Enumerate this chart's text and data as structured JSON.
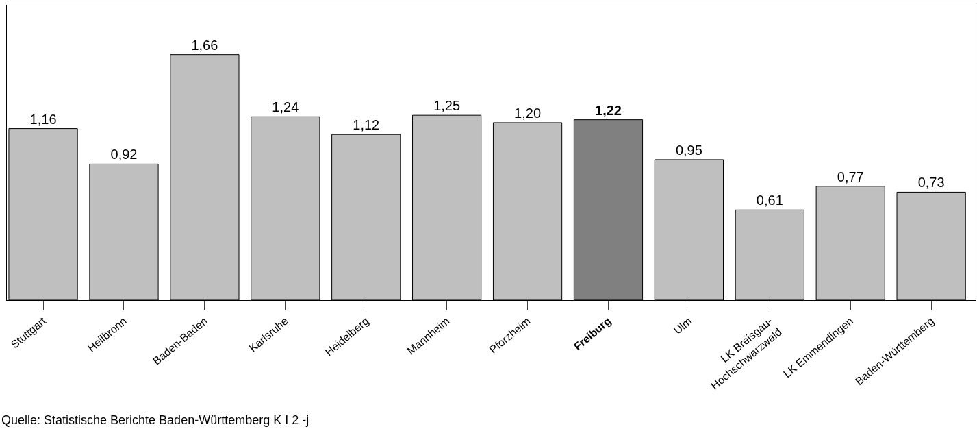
{
  "chart_data": {
    "type": "bar",
    "categories": [
      "Stuttgart",
      "Heilbronn",
      "Baden-Baden",
      "Karlsruhe",
      "Heidelberg",
      "Mannheim",
      "Pforzheim",
      "Freiburg",
      "Ulm",
      "LK Breisgau-\nHochschwarzwald",
      "LK Emmendingen",
      "Baden-Württemberg"
    ],
    "values": [
      1.16,
      0.92,
      1.66,
      1.24,
      1.12,
      1.25,
      1.2,
      1.22,
      0.95,
      0.61,
      0.77,
      0.73
    ],
    "value_labels": [
      "1,16",
      "0,92",
      "1,66",
      "1,24",
      "1,12",
      "1,25",
      "1,20",
      "1,22",
      "0,95",
      "0,61",
      "0,77",
      "0,73"
    ],
    "colors": [
      "#bfbfbf",
      "#bfbfbf",
      "#bfbfbf",
      "#bfbfbf",
      "#bfbfbf",
      "#bfbfbf",
      "#bfbfbf",
      "#808080",
      "#bfbfbf",
      "#bfbfbf",
      "#bfbfbf",
      "#bfbfbf"
    ],
    "annotations": [
      "Quelle: Statistische Berichte Baden-Württemberg K I 2 -j"
    ]
  }
}
